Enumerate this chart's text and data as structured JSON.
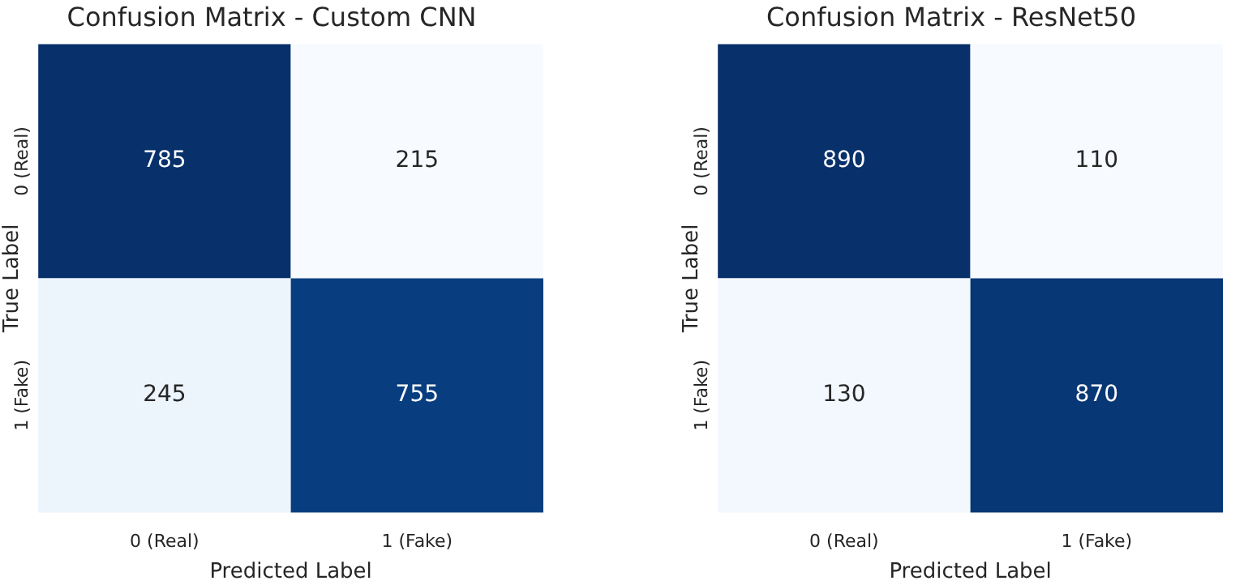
{
  "chart_data": [
    {
      "type": "heatmap",
      "title": "Confusion Matrix - Custom CNN",
      "xlabel": "Predicted Label",
      "ylabel": "True Label",
      "categories": [
        "0 (Real)",
        "1 (Fake)"
      ],
      "y_categories": [
        "0 (Real)",
        "1 (Fake)"
      ],
      "cells": [
        [
          785,
          215
        ],
        [
          245,
          755
        ]
      ],
      "data_labels": true
    },
    {
      "type": "heatmap",
      "title": "Confusion Matrix - ResNet50",
      "xlabel": "Predicted Label",
      "ylabel": "True Label",
      "categories": [
        "0 (Real)",
        "1 (Fake)"
      ],
      "y_categories": [
        "0 (Real)",
        "1 (Fake)"
      ],
      "cells": [
        [
          890,
          110
        ],
        [
          130,
          870
        ]
      ],
      "data_labels": true
    }
  ]
}
